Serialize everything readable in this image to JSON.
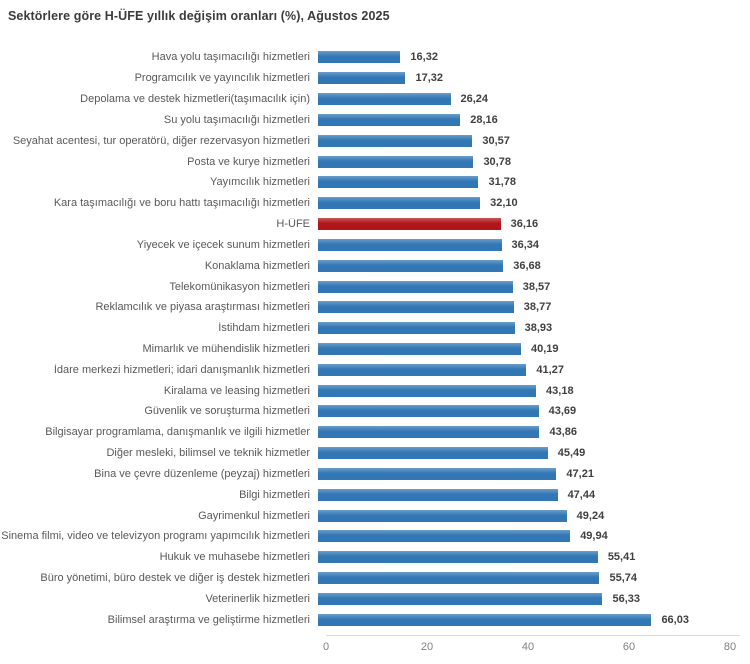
{
  "chart_data": {
    "type": "bar",
    "orientation": "horizontal",
    "title": "Sektörlere göre H-ÜFE yıllık değişim oranları (%), Ağustos 2025",
    "xlabel": "",
    "ylabel": "",
    "xlim": [
      0,
      80
    ],
    "x_ticks": [
      0,
      20,
      40,
      60,
      80
    ],
    "grid": false,
    "legend": false,
    "bar_color": "#3277b5",
    "highlight_color": "#b11519",
    "rows": [
      {
        "label": "Hava yolu taşımacılığı hizmetleri",
        "value": 16.32,
        "display": "16,32",
        "highlight": false
      },
      {
        "label": "Programcılık ve yayıncılık hizmetleri",
        "value": 17.32,
        "display": "17,32",
        "highlight": false
      },
      {
        "label": "Depolama ve destek hizmetleri(taşımacılık için)",
        "value": 26.24,
        "display": "26,24",
        "highlight": false
      },
      {
        "label": "Su yolu taşımacılığı hizmetleri",
        "value": 28.16,
        "display": "28,16",
        "highlight": false
      },
      {
        "label": "Seyahat acentesi, tur operatörü, diğer rezervasyon hizmetleri",
        "value": 30.57,
        "display": "30,57",
        "highlight": false
      },
      {
        "label": "Posta ve kurye hizmetleri",
        "value": 30.78,
        "display": "30,78",
        "highlight": false
      },
      {
        "label": "Yayımcılık hizmetleri",
        "value": 31.78,
        "display": "31,78",
        "highlight": false
      },
      {
        "label": "Kara taşımacılığı ve boru hattı taşımacılığı hizmetleri",
        "value": 32.1,
        "display": "32,10",
        "highlight": false
      },
      {
        "label": "H-ÜFE",
        "value": 36.16,
        "display": "36,16",
        "highlight": true
      },
      {
        "label": "Yiyecek ve içecek sunum hizmetleri",
        "value": 36.34,
        "display": "36,34",
        "highlight": false
      },
      {
        "label": "Konaklama hizmetleri",
        "value": 36.68,
        "display": "36,68",
        "highlight": false
      },
      {
        "label": "Telekomünikasyon hizmetleri",
        "value": 38.57,
        "display": "38,57",
        "highlight": false
      },
      {
        "label": "Reklamcılık ve piyasa araştırması hizmetleri",
        "value": 38.77,
        "display": "38,77",
        "highlight": false
      },
      {
        "label": "İstihdam hizmetleri",
        "value": 38.93,
        "display": "38,93",
        "highlight": false
      },
      {
        "label": "Mimarlık ve mühendislik hizmetleri",
        "value": 40.19,
        "display": "40,19",
        "highlight": false
      },
      {
        "label": "İdare merkezi hizmetleri; idari danışmanlık hizmetleri",
        "value": 41.27,
        "display": "41,27",
        "highlight": false
      },
      {
        "label": "Kiralama ve leasing hizmetleri",
        "value": 43.18,
        "display": "43,18",
        "highlight": false
      },
      {
        "label": "Güvenlik ve soruşturma hizmetleri",
        "value": 43.69,
        "display": "43,69",
        "highlight": false
      },
      {
        "label": "Bilgisayar programlama, danışmanlık ve ilgili hizmetler",
        "value": 43.86,
        "display": "43,86",
        "highlight": false
      },
      {
        "label": "Diğer mesleki, bilimsel ve teknik hizmetler",
        "value": 45.49,
        "display": "45,49",
        "highlight": false
      },
      {
        "label": "Bina ve çevre düzenleme (peyzaj) hizmetleri",
        "value": 47.21,
        "display": "47,21",
        "highlight": false
      },
      {
        "label": "Bilgi hizmetleri",
        "value": 47.44,
        "display": "47,44",
        "highlight": false
      },
      {
        "label": "Gayrimenkul hizmetleri",
        "value": 49.24,
        "display": "49,24",
        "highlight": false
      },
      {
        "label": "Sinema filmi, video ve televizyon programı yapımcılık hizmetleri",
        "value": 49.94,
        "display": "49,94",
        "highlight": false
      },
      {
        "label": "Hukuk ve muhasebe hizmetleri",
        "value": 55.41,
        "display": "55,41",
        "highlight": false
      },
      {
        "label": "Büro yönetimi, büro destek ve diğer iş destek hizmetleri",
        "value": 55.74,
        "display": "55,74",
        "highlight": false
      },
      {
        "label": "Veterinerlik hizmetleri",
        "value": 56.33,
        "display": "56,33",
        "highlight": false
      },
      {
        "label": "Bilimsel araştırma ve geliştirme hizmetleri",
        "value": 66.03,
        "display": "66,03",
        "highlight": false
      }
    ]
  }
}
